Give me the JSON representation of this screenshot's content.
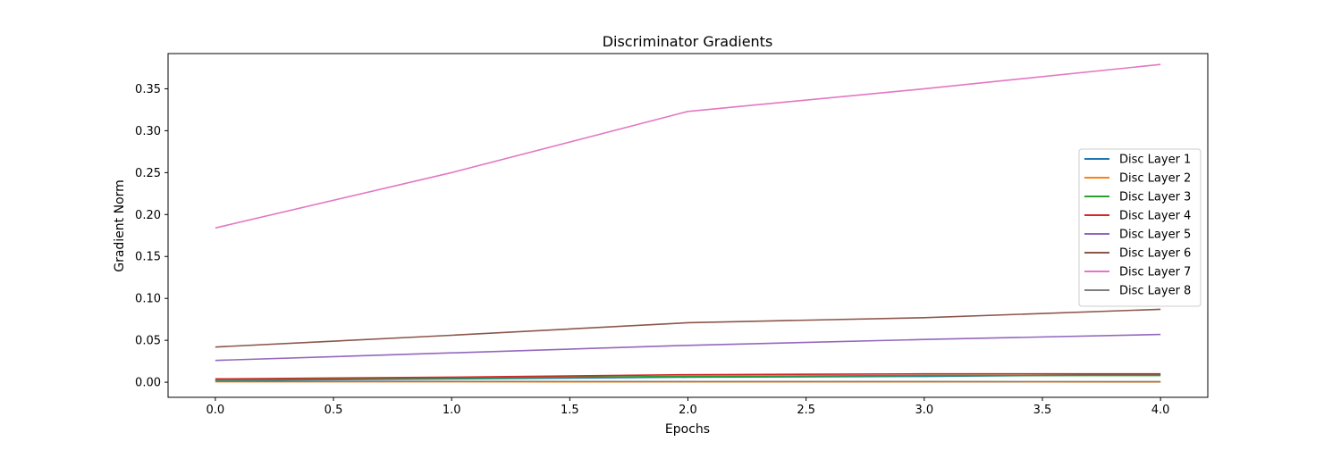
{
  "chart_data": {
    "type": "line",
    "title": "Discriminator Gradients",
    "xlabel": "Epochs",
    "ylabel": "Gradient Norm",
    "xlim": [
      -0.2,
      4.2
    ],
    "ylim": [
      -0.018,
      0.392
    ],
    "xticks": [
      0.0,
      0.5,
      1.0,
      1.5,
      2.0,
      2.5,
      3.0,
      3.5,
      4.0
    ],
    "xtick_labels": [
      "0.0",
      "0.5",
      "1.0",
      "1.5",
      "2.0",
      "2.5",
      "3.0",
      "3.5",
      "4.0"
    ],
    "yticks": [
      0.0,
      0.05,
      0.1,
      0.15,
      0.2,
      0.25,
      0.3,
      0.35
    ],
    "ytick_labels": [
      "0.00",
      "0.05",
      "0.10",
      "0.15",
      "0.20",
      "0.25",
      "0.30",
      "0.35"
    ],
    "grid": false,
    "legend_position": "center-right",
    "x": [
      0,
      1,
      2,
      3,
      4
    ],
    "series": [
      {
        "name": "Disc Layer 1",
        "color": "#1f77b4",
        "values": [
          0.002,
          0.004,
          0.006,
          0.007,
          0.009
        ]
      },
      {
        "name": "Disc Layer 2",
        "color": "#ff7f0e",
        "values": [
          0.0005,
          0.0005,
          0.0004,
          0.0004,
          0.0003
        ]
      },
      {
        "name": "Disc Layer 3",
        "color": "#2ca02c",
        "values": [
          0.003,
          0.005,
          0.007,
          0.008,
          0.008
        ]
      },
      {
        "name": "Disc Layer 4",
        "color": "#d62728",
        "values": [
          0.004,
          0.006,
          0.009,
          0.01,
          0.01
        ]
      },
      {
        "name": "Disc Layer 5",
        "color": "#9467bd",
        "values": [
          0.026,
          0.035,
          0.044,
          0.051,
          0.057
        ]
      },
      {
        "name": "Disc Layer 6",
        "color": "#8c564b",
        "values": [
          0.042,
          0.056,
          0.071,
          0.077,
          0.087
        ]
      },
      {
        "name": "Disc Layer 7",
        "color": "#e377c2",
        "values": [
          0.184,
          0.25,
          0.323,
          0.35,
          0.379
        ]
      },
      {
        "name": "Disc Layer 8",
        "color": "#7f7f7f",
        "values": [
          0.001,
          0.001,
          0.0008,
          0.0008,
          0.0007
        ]
      }
    ]
  }
}
